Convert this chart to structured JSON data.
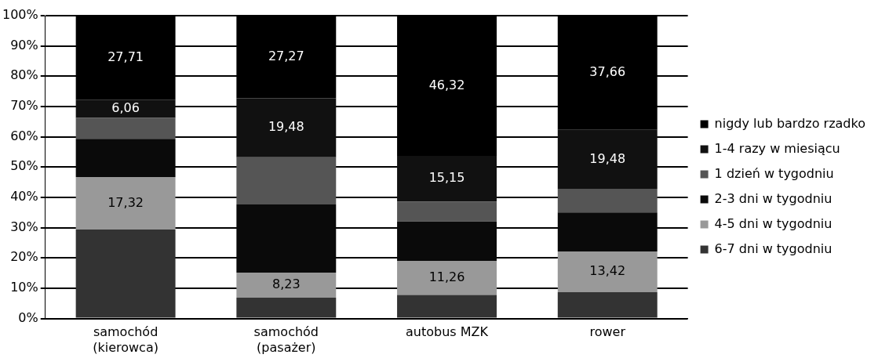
{
  "chart_data": {
    "type": "bar",
    "stacked": true,
    "categories": [
      "samochód\n(kierowca)",
      "samochód\n(pasażer)",
      "autobus MZK",
      "rower"
    ],
    "series": [
      {
        "name": "6-7 dni w tygodniu",
        "color": "#333333",
        "values": [
          29.4,
          6.9,
          7.8,
          8.7
        ],
        "value_labels": [
          null,
          null,
          null,
          null
        ]
      },
      {
        "name": "4-5 dni w tygodniu",
        "color": "#999999",
        "values": [
          17.32,
          8.23,
          11.26,
          13.42
        ],
        "value_labels": [
          "17,32",
          "8,23",
          "11,26",
          "13,42"
        ]
      },
      {
        "name": "2-3 dni w tygodniu",
        "color": "#0a0a0a",
        "values": [
          12.6,
          22.5,
          13.0,
          12.9
        ],
        "value_labels": [
          null,
          null,
          null,
          null
        ]
      },
      {
        "name": "1 dzień w tygodniu",
        "color": "#555555",
        "values": [
          6.9,
          15.6,
          6.5,
          7.8
        ],
        "value_labels": [
          null,
          null,
          null,
          null
        ]
      },
      {
        "name": "1-4 razy w miesiącu",
        "color": "#111111",
        "values": [
          6.06,
          19.48,
          15.15,
          19.48
        ],
        "value_labels": [
          "6,06",
          "19,48",
          "15,15",
          "19,48"
        ]
      },
      {
        "name": "nigdy lub bardzo rzadko",
        "color": "#000000",
        "values": [
          27.71,
          27.27,
          46.32,
          37.66
        ],
        "value_labels": [
          "27,71",
          "27,27",
          "46,32",
          "37,66"
        ]
      }
    ],
    "ylim": [
      0,
      100
    ],
    "yticks": [
      {
        "value": 0,
        "label": "0%"
      },
      {
        "value": 10,
        "label": "10%"
      },
      {
        "value": 20,
        "label": "20%"
      },
      {
        "value": 30,
        "label": "30%"
      },
      {
        "value": 40,
        "label": "40%"
      },
      {
        "value": 50,
        "label": "50%"
      },
      {
        "value": 60,
        "label": "60%"
      },
      {
        "value": 70,
        "label": "70%"
      },
      {
        "value": 80,
        "label": "80%"
      },
      {
        "value": 90,
        "label": "90%"
      },
      {
        "value": 100,
        "label": "100%"
      }
    ],
    "grid": "y",
    "legend": "right"
  }
}
